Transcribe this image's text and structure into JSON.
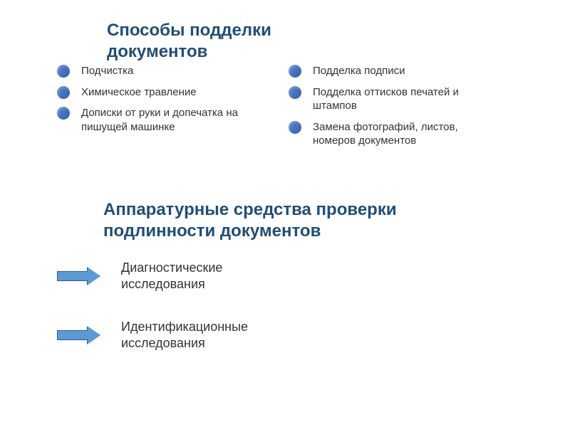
{
  "colors": {
    "heading": "#1f4e79",
    "bullet": "#4472c4",
    "arrow_fill": "#5b9bd5",
    "arrow_border": "#2e5c8a",
    "text": "#333333",
    "background": "#ffffff"
  },
  "typography": {
    "heading_fontsize": 24,
    "heading_weight": "bold",
    "bullet_fontsize": 15,
    "arrow_fontsize": 18,
    "font_family": "Arial"
  },
  "title1": "Способы подделки документов",
  "left_items": [
    "Подчистка",
    "Химическое травление",
    "Дописки от руки и допечатка на пишущей машинке"
  ],
  "right_items": [
    "Подделка подписи",
    "Подделка оттисков печатей и штампов",
    "Замена фотографий, листов, номеров документов"
  ],
  "title2": "Аппаратурные средства проверки подлинности документов",
  "arrow_items": [
    "Диагностические исследования",
    "Идентификационные исследования"
  ]
}
